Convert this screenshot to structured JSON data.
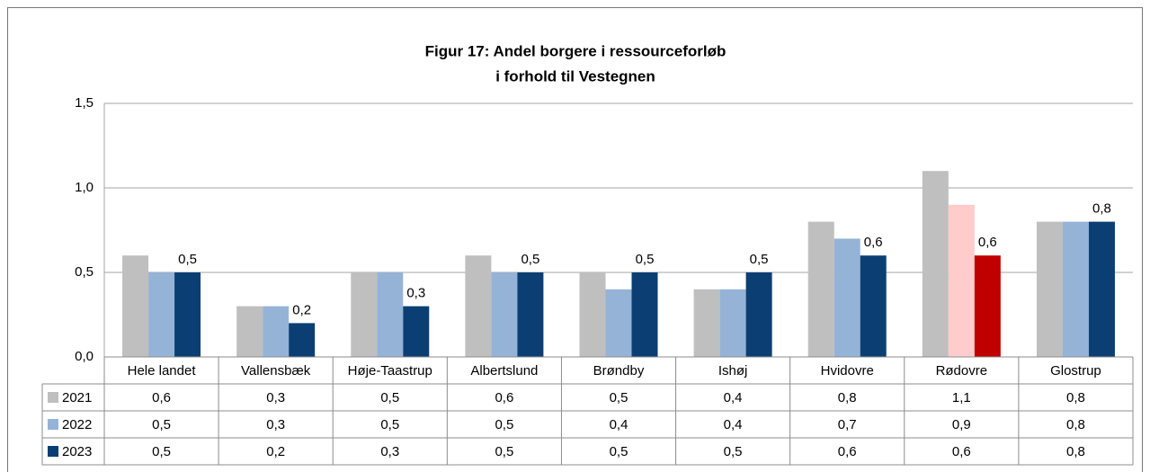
{
  "chart_data": {
    "type": "bar",
    "title": [
      "Figur 17: Andel borgere i ressourceforløb",
      "i forhold til Vestegnen"
    ],
    "categories": [
      "Hele landet",
      "Vallensbæk",
      "Høje-Taastrup",
      "Albertslund",
      "Brøndby",
      "Ishøj",
      "Hvidovre",
      "Rødovre",
      "Glostrup"
    ],
    "series": [
      {
        "name": "2021",
        "color": "#bfbfbf",
        "colors": [
          "#bfbfbf",
          "#bfbfbf",
          "#bfbfbf",
          "#bfbfbf",
          "#bfbfbf",
          "#bfbfbf",
          "#bfbfbf",
          "#bfbfbf",
          "#bfbfbf"
        ],
        "values": [
          0.6,
          0.3,
          0.5,
          0.6,
          0.5,
          0.4,
          0.8,
          1.1,
          0.8
        ],
        "value_labels": [
          "0,6",
          "0,3",
          "0,5",
          "0,6",
          "0,5",
          "0,4",
          "0,8",
          "1,1",
          "0,8"
        ],
        "show_labels": false
      },
      {
        "name": "2022",
        "color": "#95b3d7",
        "colors": [
          "#95b3d7",
          "#95b3d7",
          "#95b3d7",
          "#95b3d7",
          "#95b3d7",
          "#95b3d7",
          "#95b3d7",
          "#ffcccc",
          "#95b3d7"
        ],
        "values": [
          0.5,
          0.3,
          0.5,
          0.5,
          0.4,
          0.4,
          0.7,
          0.9,
          0.8
        ],
        "value_labels": [
          "0,5",
          "0,3",
          "0,5",
          "0,5",
          "0,4",
          "0,4",
          "0,7",
          "0,9",
          "0,8"
        ],
        "show_labels": false
      },
      {
        "name": "2023",
        "color": "#0b3f73",
        "colors": [
          "#0b3f73",
          "#0b3f73",
          "#0b3f73",
          "#0b3f73",
          "#0b3f73",
          "#0b3f73",
          "#0b3f73",
          "#c00000",
          "#0b3f73"
        ],
        "values": [
          0.5,
          0.2,
          0.3,
          0.5,
          0.5,
          0.5,
          0.6,
          0.6,
          0.8
        ],
        "value_labels": [
          "0,5",
          "0,2",
          "0,3",
          "0,5",
          "0,5",
          "0,5",
          "0,6",
          "0,6",
          "0,8"
        ],
        "show_labels": true
      }
    ],
    "ylim": [
      0,
      1.5
    ],
    "yticks": [
      {
        "value": 0,
        "label": "0,0"
      },
      {
        "value": 0.5,
        "label": "0,5"
      },
      {
        "value": 1,
        "label": "1,0"
      },
      {
        "value": 1.5,
        "label": "1,5"
      }
    ],
    "grid": true,
    "data_table": true
  }
}
